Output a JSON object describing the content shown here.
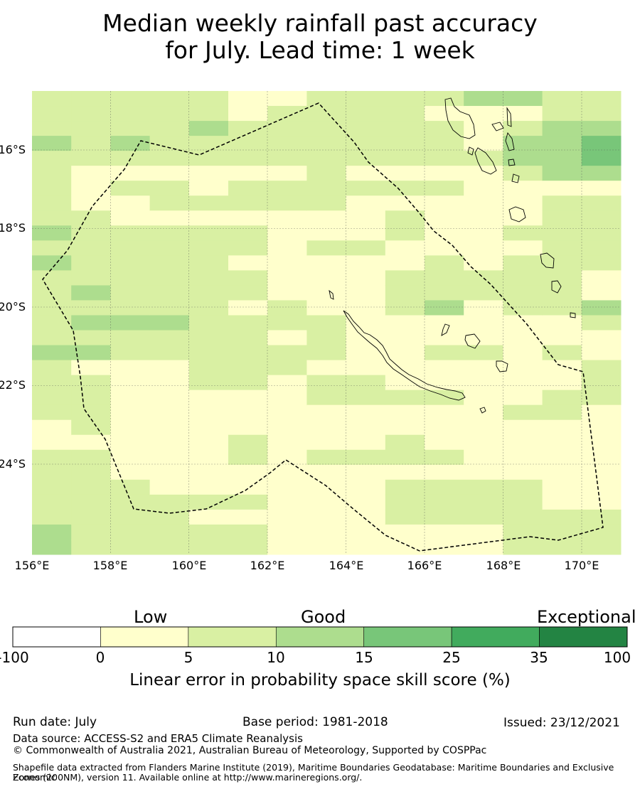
{
  "title": {
    "line1": "Median weekly rainfall past accuracy",
    "line2": "for July. Lead time: 1 week"
  },
  "map": {
    "lat_labels": [
      "16°S",
      "18°S",
      "20°S",
      "22°S",
      "24°S"
    ],
    "lon_labels": [
      "156°E",
      "158°E",
      "160°E",
      "162°E",
      "164°E",
      "166°E",
      "168°E",
      "170°E"
    ],
    "lon_range": [
      156,
      171
    ],
    "lat_range": [
      -14.7,
      -26.5
    ],
    "cell_size_deg": [
      0.833,
      0.556
    ],
    "bins": [
      "<0",
      "0-5",
      "5-10",
      "10-15",
      "15-25",
      "25-35",
      "35-100"
    ],
    "grid_skill_bins": [
      "222221122223322",
      "222221222211122",
      "222232222221233",
      "323222222221334",
      "222222222222334",
      "211111121111233",
      "212212222221111",
      "211222221111122",
      "221111111211122",
      "322222111211222",
      "222222122111122",
      "322221111121222",
      "222222111222221",
      "232222111222221",
      "222221211231223",
      "233322221111112",
      "222222121111111",
      "332222221122121",
      "211122211111112",
      "221122122111112",
      "221111122221122",
      "221111111111221",
      "121111111111111",
      "111112111211111",
      "221112122221111",
      "221111111111111",
      "222111111222211",
      "222222111222211",
      "222211111222222",
      "322222111111222",
      "322222111111222"
    ],
    "colors": {
      "below_0": "#ffffff",
      "c0_5": "#ffffcc",
      "c5_10": "#d9f0a3",
      "c10_15": "#addd8e",
      "c15_25": "#78c679",
      "c25_35": "#41ab5d",
      "c35_100": "#238443"
    }
  },
  "colorbar": {
    "categories": [
      "Low",
      "Good",
      "Exceptional"
    ],
    "ticks": [
      "-100",
      "0",
      "5",
      "10",
      "15",
      "25",
      "35",
      "100"
    ],
    "label": "Linear error in probability space skill score (%)"
  },
  "footer": {
    "run_date": "Run date: July",
    "base_period": "Base period: 1981-2018",
    "issued": "Issued: 23/12/2021",
    "data_source": "Data source: ACCESS-S2 and ERA5 Climate Reanalysis",
    "copyright": "© Commonwealth of Australia 2021, Australian Bureau of Meteorology, Supported by COSPPac",
    "shapefile_line1": "Shapefile data extracted from Flanders Marine Institute (2019), Maritime Boundaries Geodatabase: Maritime Boundaries and Exclusive Economic",
    "shapefile_line2": "Zones (200NM), version 11. Available online at http://www.marineregions.org/."
  }
}
